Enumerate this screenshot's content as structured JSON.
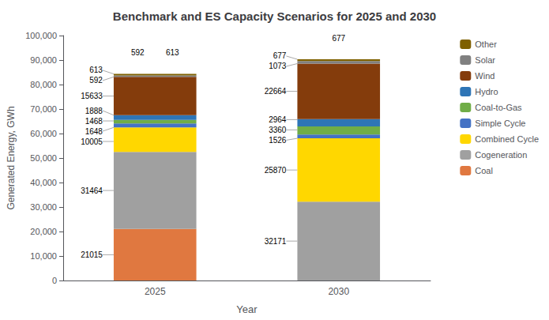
{
  "chart_data": {
    "type": "bar",
    "title": "Benchmark and ES Capacity Scenarios for 2025 and 2030",
    "xlabel": "Year",
    "ylabel": "Generated Energy, GWh",
    "categories": [
      "2025",
      "2030"
    ],
    "series": [
      {
        "name": "Coal",
        "color": "#E07840",
        "values": [
          21015,
          0
        ]
      },
      {
        "name": "Cogeneration",
        "color": "#A0A0A0",
        "values": [
          31464,
          32171
        ]
      },
      {
        "name": "Combined Cycle",
        "color": "#FFD700",
        "values": [
          10005,
          25870
        ]
      },
      {
        "name": "Simple Cycle",
        "color": "#4472C4",
        "values": [
          1648,
          1526
        ]
      },
      {
        "name": "Coal-to-Gas",
        "color": "#70AD47",
        "values": [
          1468,
          3360
        ]
      },
      {
        "name": "Hydro",
        "color": "#2E75B6",
        "values": [
          1888,
          2964
        ]
      },
      {
        "name": "Wind",
        "color": "#843C0C",
        "values": [
          15633,
          22664
        ]
      },
      {
        "name": "Solar",
        "color": "#808080",
        "values": [
          592,
          1073
        ]
      },
      {
        "name": "Other",
        "color": "#7F6000",
        "values": [
          613,
          677
        ]
      }
    ],
    "stacked": true,
    "data_labels": true,
    "ylim": [
      0,
      100000
    ],
    "yticks": [
      0,
      {
        "value": 10000,
        "label": "10,000"
      },
      {
        "value": 20000,
        "label": "20,000"
      },
      {
        "value": 30000,
        "label": "30,000"
      },
      {
        "value": 40000,
        "label": "40,000"
      },
      {
        "value": 50000,
        "label": "50,000"
      },
      {
        "value": 60000,
        "label": "60,000"
      },
      {
        "value": 70000,
        "label": "70,000"
      },
      {
        "value": 80000,
        "label": "80,000"
      },
      {
        "value": 90000,
        "label": "90,000"
      },
      {
        "value": 100000,
        "label": "100,000"
      }
    ],
    "grid": false,
    "legend": "upper right",
    "annotations": [
      {
        "text": "592",
        "category": "2025"
      },
      {
        "text": "613",
        "category": "2025"
      },
      {
        "text": "677",
        "category": "2030"
      }
    ]
  }
}
